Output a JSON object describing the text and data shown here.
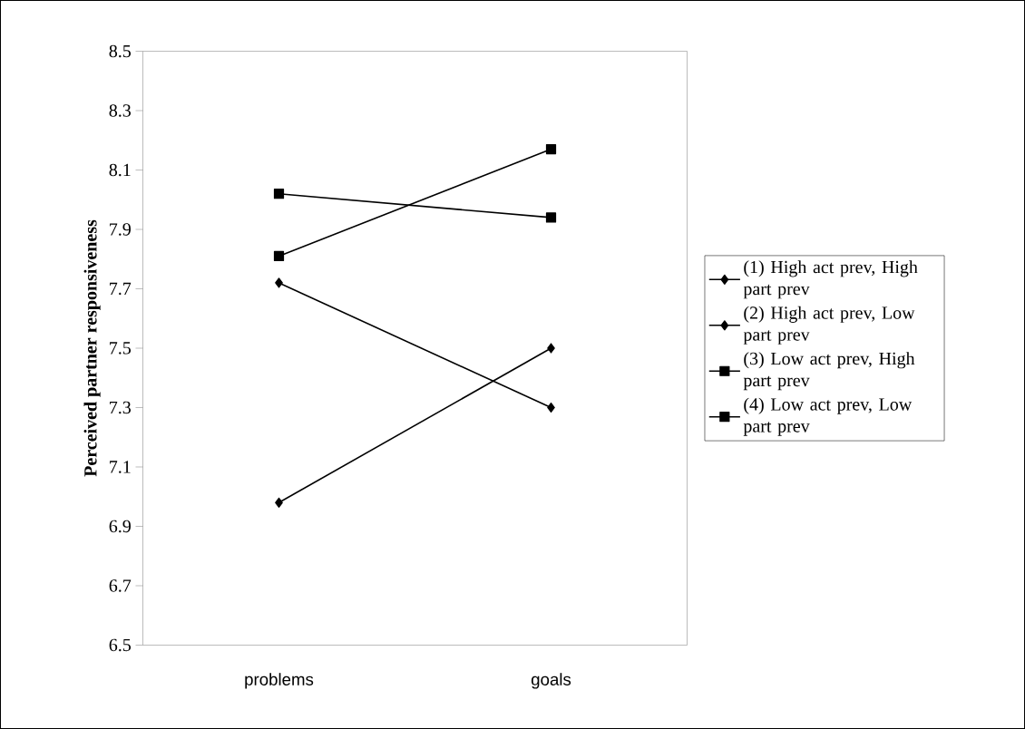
{
  "chart_data": {
    "type": "line",
    "ylabel": "Perceived partner responsiveness",
    "categories": [
      "problems",
      "goals"
    ],
    "ylim": [
      6.5,
      8.5
    ],
    "yticks": [
      6.5,
      6.7,
      6.9,
      7.1,
      7.3,
      7.5,
      7.7,
      7.9,
      8.1,
      8.3,
      8.5
    ],
    "grid": false,
    "legend": "right",
    "line_style": "solid",
    "series": [
      {
        "name": "(1) High act prev, High part prev",
        "color": "#000000",
        "marker": "diamond",
        "values": [
          6.98,
          7.5
        ]
      },
      {
        "name": "(2) High act prev, Low part prev",
        "color": "#000000",
        "marker": "diamond",
        "values": [
          7.72,
          7.3
        ]
      },
      {
        "name": "(3) Low act prev, High part prev",
        "color": "#000000",
        "marker": "square",
        "values": [
          8.02,
          7.94
        ]
      },
      {
        "name": "(4) Low act prev, Low part prev",
        "color": "#000000",
        "marker": "square",
        "values": [
          7.81,
          8.17
        ]
      }
    ]
  }
}
